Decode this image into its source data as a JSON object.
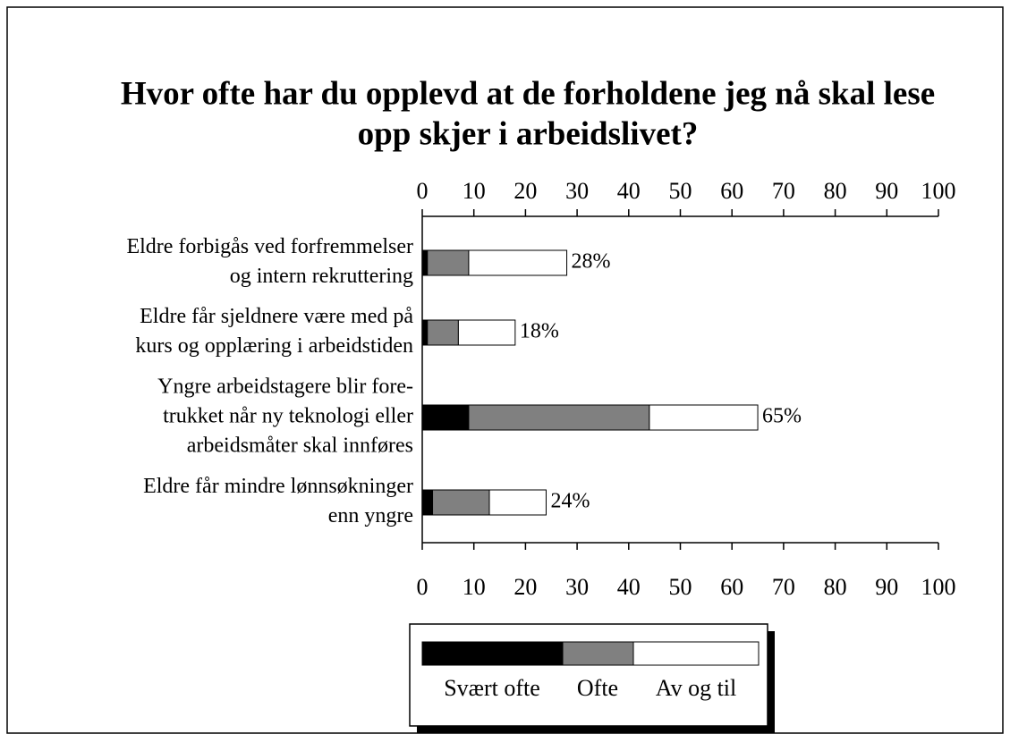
{
  "chart_data": {
    "type": "stacked_bar_horizontal",
    "title": [
      "Hvor ofte har du opplevd at de forholdene jeg nå skal lese",
      "opp skjer i arbeidslivet?"
    ],
    "categories": [
      [
        "Eldre forbigås ved forfremmelser",
        "og intern rekruttering"
      ],
      [
        "Eldre får sjeldnere være med på",
        "kurs og opplæring i arbeidstiden"
      ],
      [
        "Yngre arbeidstagere blir fore-",
        "trukket når ny teknologi eller",
        "arbeidsmåter skal innføres"
      ],
      [
        "Eldre får mindre lønnsøkninger",
        "enn yngre"
      ]
    ],
    "series": [
      {
        "name": "Svært ofte",
        "color": "#000000",
        "values": [
          1,
          1,
          9,
          2
        ]
      },
      {
        "name": "Ofte",
        "color": "#808080",
        "values": [
          8,
          6,
          35,
          11
        ]
      },
      {
        "name": "Av og til",
        "color": "#ffffff",
        "values": [
          19,
          11,
          21,
          11
        ]
      }
    ],
    "totals": [
      28,
      18,
      65,
      24
    ],
    "total_labels": [
      "28%",
      "18%",
      "65%",
      "24%"
    ],
    "xlim": [
      0,
      100
    ],
    "xticks": [
      0,
      10,
      20,
      30,
      40,
      50,
      60,
      70,
      80,
      90,
      100
    ]
  }
}
